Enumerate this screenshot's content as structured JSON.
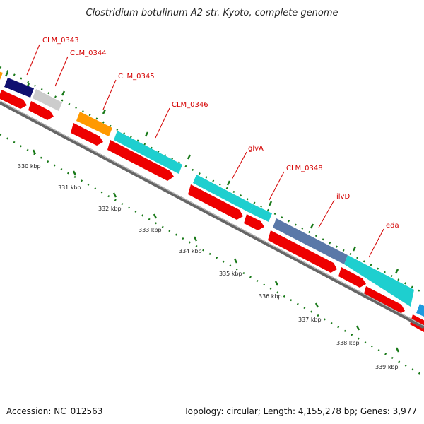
{
  "title": "Clostridium botulinum A2 str. Kyoto, complete genome",
  "footer": {
    "accession": "Accession: NC_012563",
    "summary": "Topology: circular; Length: 4,155,278 bp; Genes: 3,977"
  },
  "colors": {
    "label": "#d40000",
    "cds_arrow": "#ee0000",
    "ticks": "#1a7a1a",
    "backbone": "#777777",
    "teal": "#1ecfcf",
    "navy": "#101070",
    "grey": "#cccccc",
    "orange": "#ff9900",
    "slate": "#5a78a8",
    "azure": "#1e9ae0"
  },
  "gene_labels": [
    {
      "name": "CLM_0343"
    },
    {
      "name": "CLM_0344"
    },
    {
      "name": "CLM_0345"
    },
    {
      "name": "CLM_0346"
    },
    {
      "name": "glvA"
    },
    {
      "name": "CLM_0348"
    },
    {
      "name": "ilvD"
    },
    {
      "name": "eda"
    }
  ],
  "kbp_ticks": [
    "330 kbp",
    "331 kbp",
    "332 kbp",
    "333 kbp",
    "334 kbp",
    "335 kbp",
    "336 kbp",
    "337 kbp",
    "338 kbp",
    "339 kbp"
  ]
}
